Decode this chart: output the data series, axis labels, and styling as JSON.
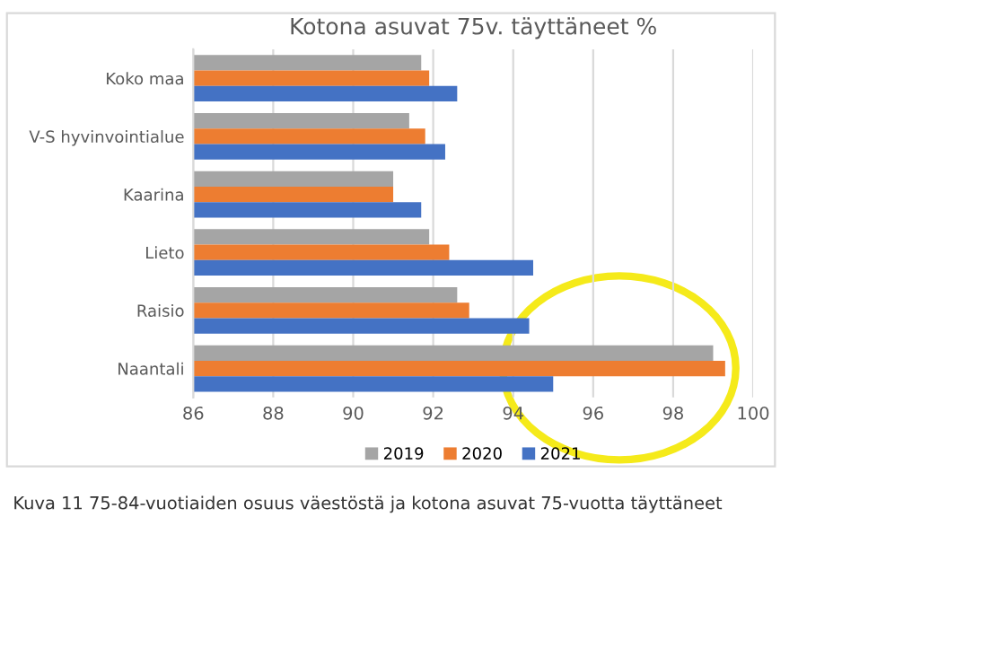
{
  "chart_data": {
    "type": "bar",
    "orientation": "horizontal",
    "title": "Kotona asuvat 75v. täyttäneet %",
    "categories": [
      "Koko maa",
      "V-S hyvinvointialue",
      "Kaarina",
      "Lieto",
      "Raisio",
      "Naantali"
    ],
    "series": [
      {
        "name": "2019",
        "color": "#a5a5a5",
        "values": [
          91.7,
          91.4,
          91.0,
          91.9,
          92.6,
          99.0
        ]
      },
      {
        "name": "2020",
        "color": "#ed7d31",
        "values": [
          91.9,
          91.8,
          91.0,
          92.4,
          92.9,
          99.3
        ]
      },
      {
        "name": "2021",
        "color": "#4472c4",
        "values": [
          92.6,
          92.3,
          91.7,
          94.5,
          94.4,
          95.0
        ]
      }
    ],
    "xlim": [
      86,
      100
    ],
    "xticks": [
      86,
      88,
      90,
      92,
      94,
      96,
      98,
      100
    ],
    "grid": "x",
    "legend": "bottom",
    "annotations": [
      "Kuva 11 75-84-vuotiaiden osuus väestöstä ja kotona asuvat 75-vuotta täyttäneet"
    ]
  }
}
